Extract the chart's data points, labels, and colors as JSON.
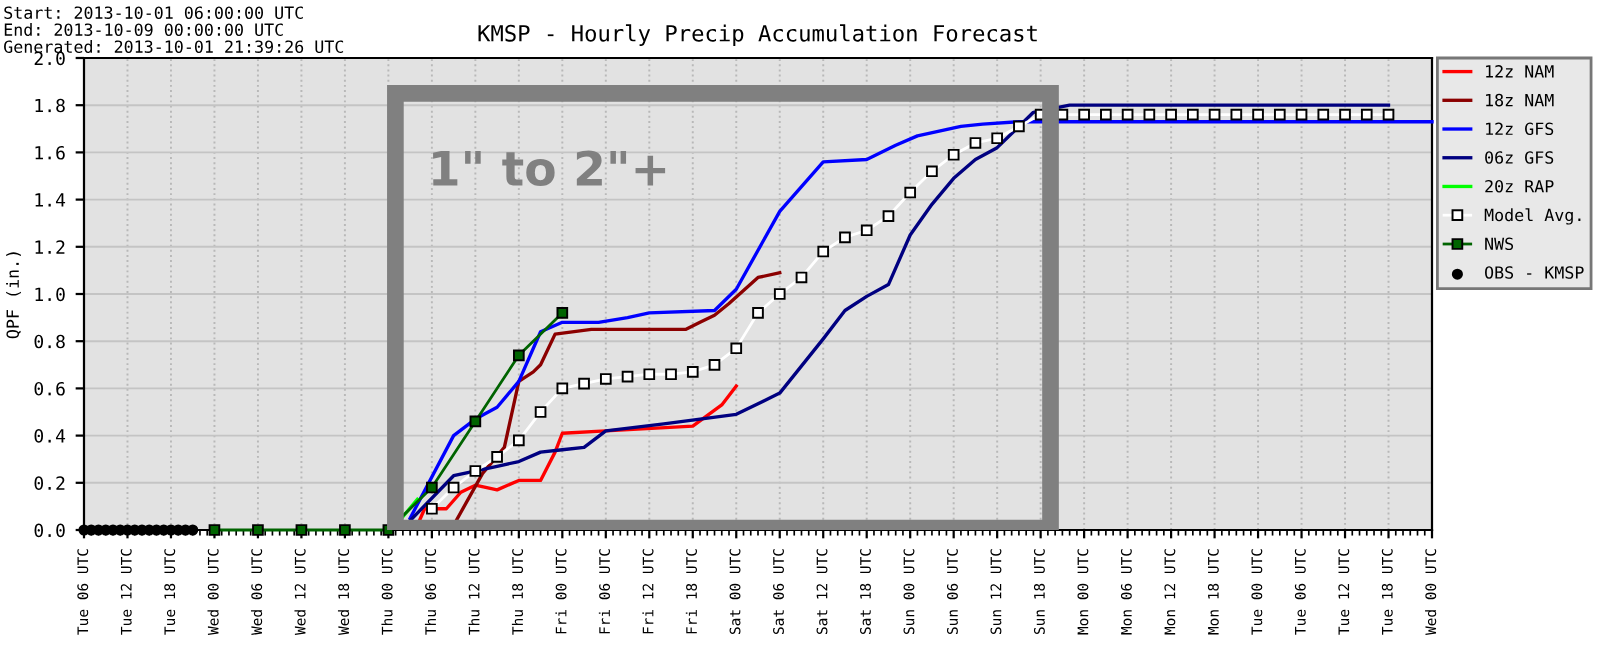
{
  "chart_data": {
    "type": "line",
    "title": "KMSP - Hourly Precip Accumulation Forecast",
    "ylabel": "QPF (in.)",
    "annotations": [
      "Start: 2013-10-01 06:00:00 UTC",
      "End: 2013-10-09 00:00:00 UTC",
      "Generated: 2013-10-01 21:39:26 UTC",
      "1\" to 2\"+"
    ],
    "xlim": [
      "2013-10-01T06:00",
      "2013-10-09T00:00"
    ],
    "ylim": [
      0,
      2
    ],
    "yticks": [
      {
        "value": 0,
        "label": "0.0"
      },
      {
        "value": 0.2,
        "label": "0.2"
      },
      {
        "value": 0.4,
        "label": "0.4"
      },
      {
        "value": 0.6,
        "label": "0.6"
      },
      {
        "value": 0.8,
        "label": "0.8"
      },
      {
        "value": 1,
        "label": "1.0"
      },
      {
        "value": 1.2,
        "label": "1.2"
      },
      {
        "value": 1.4,
        "label": "1.4"
      },
      {
        "value": 1.6,
        "label": "1.6"
      },
      {
        "value": 1.8,
        "label": "1.8"
      },
      {
        "value": 2,
        "label": "2.0"
      }
    ],
    "xticks": [
      {
        "value": "2013-10-01T06:00",
        "label": "Tue 06 UTC"
      },
      {
        "value": "2013-10-01T12:00",
        "label": "Tue 12 UTC"
      },
      {
        "value": "2013-10-01T18:00",
        "label": "Tue 18 UTC"
      },
      {
        "value": "2013-10-02T00:00",
        "label": "Wed 00 UTC"
      },
      {
        "value": "2013-10-02T06:00",
        "label": "Wed 06 UTC"
      },
      {
        "value": "2013-10-02T12:00",
        "label": "Wed 12 UTC"
      },
      {
        "value": "2013-10-02T18:00",
        "label": "Wed 18 UTC"
      },
      {
        "value": "2013-10-03T00:00",
        "label": "Thu 00 UTC"
      },
      {
        "value": "2013-10-03T06:00",
        "label": "Thu 06 UTC"
      },
      {
        "value": "2013-10-03T12:00",
        "label": "Thu 12 UTC"
      },
      {
        "value": "2013-10-03T18:00",
        "label": "Thu 18 UTC"
      },
      {
        "value": "2013-10-04T00:00",
        "label": "Fri 00 UTC"
      },
      {
        "value": "2013-10-04T06:00",
        "label": "Fri 06 UTC"
      },
      {
        "value": "2013-10-04T12:00",
        "label": "Fri 12 UTC"
      },
      {
        "value": "2013-10-04T18:00",
        "label": "Fri 18 UTC"
      },
      {
        "value": "2013-10-05T00:00",
        "label": "Sat 00 UTC"
      },
      {
        "value": "2013-10-05T06:00",
        "label": "Sat 06 UTC"
      },
      {
        "value": "2013-10-05T12:00",
        "label": "Sat 12 UTC"
      },
      {
        "value": "2013-10-05T18:00",
        "label": "Sat 18 UTC"
      },
      {
        "value": "2013-10-06T00:00",
        "label": "Sun 00 UTC"
      },
      {
        "value": "2013-10-06T06:00",
        "label": "Sun 06 UTC"
      },
      {
        "value": "2013-10-06T12:00",
        "label": "Sun 12 UTC"
      },
      {
        "value": "2013-10-06T18:00",
        "label": "Sun 18 UTC"
      },
      {
        "value": "2013-10-07T00:00",
        "label": "Mon 00 UTC"
      },
      {
        "value": "2013-10-07T06:00",
        "label": "Mon 06 UTC"
      },
      {
        "value": "2013-10-07T12:00",
        "label": "Mon 12 UTC"
      },
      {
        "value": "2013-10-07T18:00",
        "label": "Mon 18 UTC"
      },
      {
        "value": "2013-10-08T00:00",
        "label": "Tue 00 UTC"
      },
      {
        "value": "2013-10-08T06:00",
        "label": "Tue 06 UTC"
      },
      {
        "value": "2013-10-08T12:00",
        "label": "Tue 12 UTC"
      },
      {
        "value": "2013-10-08T18:00",
        "label": "Tue 18 UTC"
      },
      {
        "value": "2013-10-09T00:00",
        "label": "Wed 00 UTC"
      }
    ],
    "grid": true,
    "legend": "top right",
    "series": [
      {
        "name": "12z NAM",
        "color": "#ff0000",
        "marker": "none",
        "x": [
          "2013-10-03T04:00",
          "2013-10-03T05:00",
          "2013-10-03T08:00",
          "2013-10-03T10:00",
          "2013-10-03T12:00",
          "2013-10-03T15:00",
          "2013-10-03T18:00",
          "2013-10-03T21:00",
          "2013-10-03T23:00",
          "2013-10-04T00:00",
          "2013-10-04T06:00",
          "2013-10-04T18:00",
          "2013-10-04T22:00",
          "2013-10-05T00:00"
        ],
        "values": [
          0.02,
          0.09,
          0.09,
          0.16,
          0.19,
          0.17,
          0.21,
          0.21,
          0.33,
          0.41,
          0.42,
          0.44,
          0.53,
          0.61
        ]
      },
      {
        "name": "18z NAM",
        "color": "#8b0000",
        "marker": "none",
        "x": [
          "2013-10-03T09:00",
          "2013-10-03T13:00",
          "2013-10-03T16:00",
          "2013-10-03T18:00",
          "2013-10-03T20:00",
          "2013-10-03T21:00",
          "2013-10-03T23:00",
          "2013-10-04T04:00",
          "2013-10-04T17:00",
          "2013-10-04T19:00",
          "2013-10-04T21:00",
          "2013-10-04T23:00",
          "2013-10-05T03:00",
          "2013-10-05T06:00"
        ],
        "values": [
          0.02,
          0.24,
          0.35,
          0.63,
          0.67,
          0.7,
          0.83,
          0.85,
          0.85,
          0.88,
          0.91,
          0.96,
          1.07,
          1.09
        ]
      },
      {
        "name": "12z GFS",
        "color": "#0000ff",
        "marker": "none",
        "x": [
          "2013-10-03T03:00",
          "2013-10-03T09:00",
          "2013-10-03T12:00",
          "2013-10-03T15:00",
          "2013-10-03T18:00",
          "2013-10-03T21:00",
          "2013-10-04T00:00",
          "2013-10-04T05:00",
          "2013-10-04T09:00",
          "2013-10-04T12:00",
          "2013-10-04T21:00",
          "2013-10-05T00:00",
          "2013-10-05T06:00",
          "2013-10-05T12:00",
          "2013-10-05T18:00",
          "2013-10-05T22:00",
          "2013-10-06T01:00",
          "2013-10-06T07:00",
          "2013-10-06T10:00",
          "2013-10-06T15:00",
          "2013-10-09T00:00"
        ],
        "values": [
          0.05,
          0.4,
          0.47,
          0.52,
          0.63,
          0.84,
          0.88,
          0.88,
          0.9,
          0.92,
          0.93,
          1.02,
          1.35,
          1.56,
          1.57,
          1.63,
          1.67,
          1.71,
          1.72,
          1.73,
          1.73
        ]
      },
      {
        "name": "06z GFS",
        "color": "#000080",
        "marker": "none",
        "x": [
          "2013-10-03T03:00",
          "2013-10-03T09:00",
          "2013-10-03T15:00",
          "2013-10-03T18:00",
          "2013-10-03T21:00",
          "2013-10-04T00:00",
          "2013-10-04T03:00",
          "2013-10-04T06:00",
          "2013-10-04T14:00",
          "2013-10-05T00:00",
          "2013-10-05T06:00",
          "2013-10-05T12:00",
          "2013-10-05T15:00",
          "2013-10-05T18:00",
          "2013-10-05T21:00",
          "2013-10-06T00:00",
          "2013-10-06T03:00",
          "2013-10-06T06:00",
          "2013-10-06T09:00",
          "2013-10-06T12:00",
          "2013-10-06T15:00",
          "2013-10-06T17:00",
          "2013-10-06T22:00",
          "2013-10-08T18:00"
        ],
        "values": [
          0.04,
          0.23,
          0.27,
          0.29,
          0.33,
          0.34,
          0.35,
          0.42,
          0.45,
          0.49,
          0.58,
          0.81,
          0.93,
          0.99,
          1.04,
          1.25,
          1.38,
          1.49,
          1.57,
          1.62,
          1.71,
          1.77,
          1.8,
          1.8
        ]
      },
      {
        "name": "20z RAP",
        "color": "#00ff00",
        "marker": "none",
        "x": [
          "2013-10-03T01:00",
          "2013-10-03T04:00"
        ],
        "values": [
          0.02,
          0.13
        ]
      },
      {
        "name": "Model Avg.",
        "color": "#ffffff",
        "marker": "square",
        "x": [
          "2013-10-03T06:00",
          "2013-10-03T09:00",
          "2013-10-03T12:00",
          "2013-10-03T15:00",
          "2013-10-03T18:00",
          "2013-10-03T21:00",
          "2013-10-04T00:00",
          "2013-10-04T03:00",
          "2013-10-04T06:00",
          "2013-10-04T09:00",
          "2013-10-04T12:00",
          "2013-10-04T15:00",
          "2013-10-04T18:00",
          "2013-10-04T21:00",
          "2013-10-05T00:00",
          "2013-10-05T03:00",
          "2013-10-05T06:00",
          "2013-10-05T09:00",
          "2013-10-05T12:00",
          "2013-10-05T15:00",
          "2013-10-05T18:00",
          "2013-10-05T21:00",
          "2013-10-06T00:00",
          "2013-10-06T03:00",
          "2013-10-06T06:00",
          "2013-10-06T09:00",
          "2013-10-06T12:00",
          "2013-10-06T15:00",
          "2013-10-06T18:00",
          "2013-10-06T21:00",
          "2013-10-07T00:00",
          "2013-10-07T03:00",
          "2013-10-07T06:00",
          "2013-10-07T09:00",
          "2013-10-07T12:00",
          "2013-10-07T15:00",
          "2013-10-07T18:00",
          "2013-10-07T21:00",
          "2013-10-08T00:00",
          "2013-10-08T03:00",
          "2013-10-08T06:00",
          "2013-10-08T09:00",
          "2013-10-08T12:00",
          "2013-10-08T15:00",
          "2013-10-08T18:00"
        ],
        "values": [
          0.09,
          0.18,
          0.25,
          0.31,
          0.38,
          0.5,
          0.6,
          0.62,
          0.64,
          0.65,
          0.66,
          0.66,
          0.67,
          0.7,
          0.77,
          0.92,
          1.0,
          1.07,
          1.18,
          1.24,
          1.27,
          1.33,
          1.43,
          1.52,
          1.59,
          1.64,
          1.66,
          1.71,
          1.76,
          1.76,
          1.76,
          1.76,
          1.76,
          1.76,
          1.76,
          1.76,
          1.76,
          1.76,
          1.76,
          1.76,
          1.76,
          1.76,
          1.76,
          1.76,
          1.76
        ]
      },
      {
        "name": "NWS",
        "color": "#006400",
        "marker": "square",
        "x": [
          "2013-10-02T00:00",
          "2013-10-02T06:00",
          "2013-10-02T12:00",
          "2013-10-02T18:00",
          "2013-10-03T00:00",
          "2013-10-03T06:00",
          "2013-10-03T12:00",
          "2013-10-03T18:00",
          "2013-10-04T00:00"
        ],
        "values": [
          0,
          0,
          0,
          0,
          0,
          0.18,
          0.46,
          0.74,
          0.92
        ]
      },
      {
        "name": "OBS - KMSP",
        "type": "scatter",
        "color": "#000000",
        "marker": "circle",
        "x": [
          "2013-10-01T06:00",
          "2013-10-01T07:00",
          "2013-10-01T08:00",
          "2013-10-01T09:00",
          "2013-10-01T10:00",
          "2013-10-01T11:00",
          "2013-10-01T12:00",
          "2013-10-01T13:00",
          "2013-10-01T14:00",
          "2013-10-01T15:00",
          "2013-10-01T16:00",
          "2013-10-01T17:00",
          "2013-10-01T18:00",
          "2013-10-01T19:00",
          "2013-10-01T20:00",
          "2013-10-01T21:00"
        ],
        "values": [
          0,
          0,
          0,
          0,
          0,
          0,
          0,
          0,
          0,
          0,
          0,
          0,
          0,
          0,
          0,
          0
        ]
      }
    ]
  }
}
